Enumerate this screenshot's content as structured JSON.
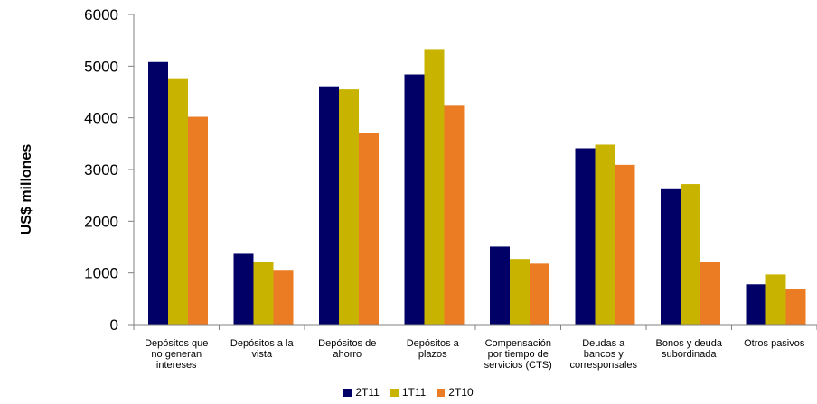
{
  "chart_data": {
    "type": "bar",
    "ylabel": "US$ millones",
    "ylim": [
      0,
      6000
    ],
    "yticks": [
      "0",
      "1000",
      "2000",
      "3000",
      "4000",
      "5000",
      "6000"
    ],
    "categories": [
      [
        "Depósitos que",
        "no generan",
        "intereses"
      ],
      [
        "Depósitos a la",
        "vista"
      ],
      [
        "Depósitos de",
        "ahorro"
      ],
      [
        "Depósitos a",
        "plazos"
      ],
      [
        "Compensación",
        "por tiempo de",
        "servicios (CTS)"
      ],
      [
        "Deudas a",
        "bancos y",
        "corresponsales"
      ],
      [
        "Bonos y deuda",
        "subordinada"
      ],
      [
        "Otros pasivos"
      ]
    ],
    "series": [
      {
        "name": "2T11",
        "color": "#000066",
        "values": [
          5080,
          1370,
          4610,
          4840,
          1510,
          3410,
          2620,
          780
        ]
      },
      {
        "name": "1T11",
        "color": "#c8b400",
        "values": [
          4750,
          1210,
          4550,
          5330,
          1270,
          3480,
          2720,
          970
        ]
      },
      {
        "name": "2T10",
        "color": "#ec7c23",
        "values": [
          4020,
          1060,
          3710,
          4250,
          1180,
          3090,
          1210,
          680
        ]
      }
    ],
    "legend_position": "bottom",
    "grid": false
  }
}
